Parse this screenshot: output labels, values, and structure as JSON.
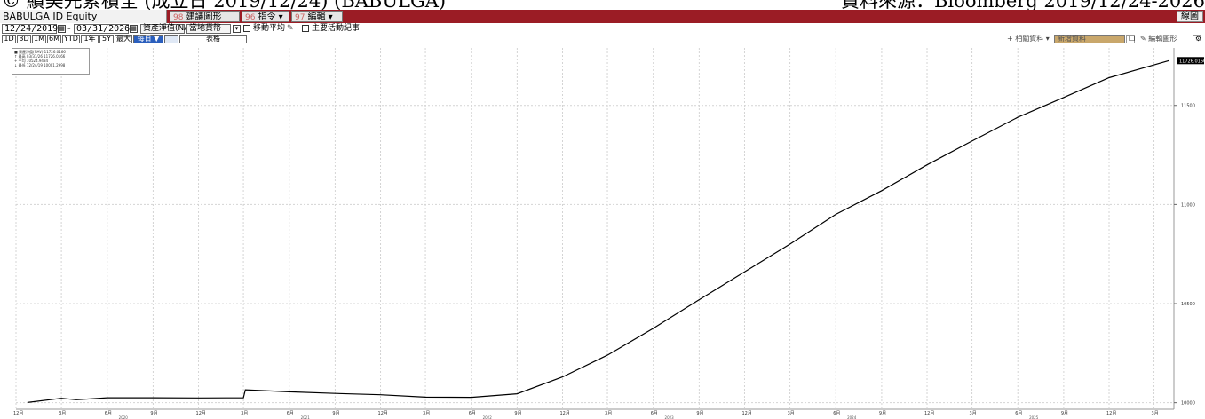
{
  "caption": {
    "left": "© 績美先索積全 (成立日 2019/12/24) (BABULGA)",
    "right": "資料來源：Bloomberg 2019/12/24-2026"
  },
  "titlebar": {
    "ticker": "BABULGA ID Equity",
    "btn_suggest_num": "98",
    "btn_suggest": "建議圖形",
    "btn_command_num": "96",
    "btn_command": "指令",
    "btn_edit_num": "97",
    "btn_edit": "編輯",
    "right_btn": "線圖"
  },
  "daterow": {
    "start_date": "12/24/2019",
    "end_date": "03/31/2026",
    "series_select": "資產淨值(NAV",
    "currency_select": "當地貨幣",
    "moving_avg_label": "移動平均",
    "events_label": "主要活動紀事"
  },
  "periods": {
    "items": [
      "1D",
      "3D",
      "1M",
      "6M",
      "YTD",
      "1年",
      "5Y",
      "最大",
      "每日 ▼"
    ],
    "table_label": "表格"
  },
  "toolbar_right": {
    "related_label": "相關資料",
    "new_data_label": "新增資料",
    "edit_chart_label": "編輯圖形"
  },
  "legend": {
    "rows": [
      "■ 資產淨值(NAV)  11726.0166",
      "↑ 最高 03/31/26   11726.0166",
      "+ 平均             10524.9434",
      "↓ 最低 12/24/19   10001.2998"
    ]
  },
  "colors": {
    "titlebar": "#9b1c25",
    "active_period": "#2b5fbd",
    "new_data_field": "#c9a76b"
  },
  "chart_data": {
    "type": "line",
    "series": [
      {
        "name": "資產淨值(NAV)",
        "x": [
          "2019-12-24",
          "2020-03-01",
          "2020-03-31",
          "2020-06-01",
          "2020-09-01",
          "2020-12-01",
          "2021-03-01",
          "2021-03-05",
          "2021-06-01",
          "2021-09-01",
          "2021-12-01",
          "2022-03-01",
          "2022-06-01",
          "2022-09-01",
          "2022-12-01",
          "2023-03-01",
          "2023-06-01",
          "2023-09-01",
          "2023-12-01",
          "2024-03-01",
          "2024-06-01",
          "2024-09-01",
          "2024-12-01",
          "2025-03-01",
          "2025-06-01",
          "2025-09-01",
          "2025-12-01",
          "2026-03-31"
        ],
        "values": [
          10001.3,
          10022,
          10015,
          10025,
          10025,
          10024,
          10025,
          10065,
          10055,
          10047,
          10040,
          10028,
          10027,
          10045,
          10130,
          10240,
          10375,
          10520,
          10660,
          10800,
          10950,
          11070,
          11200,
          11320,
          11440,
          11540,
          11640,
          11726.0166
        ]
      }
    ],
    "y_ticks": [
      10000,
      10500,
      11000,
      11500
    ],
    "ylim": [
      9985,
      11790
    ],
    "last_value_label": "11726.0166",
    "x_tick_labels": [
      "12月",
      "3月",
      "6月",
      "9月",
      "12月",
      "3月",
      "6月",
      "9月",
      "12月",
      "3月",
      "6月",
      "9月",
      "12月",
      "3月",
      "6月",
      "9月",
      "12月",
      "3月",
      "6月",
      "9月",
      "12月",
      "3月",
      "6月",
      "9月",
      "12月",
      "3月"
    ],
    "x_tick_dates": [
      "2019-12-01",
      "2020-03-01",
      "2020-06-01",
      "2020-09-01",
      "2020-12-01",
      "2021-03-01",
      "2021-06-01",
      "2021-09-01",
      "2021-12-01",
      "2022-03-01",
      "2022-06-01",
      "2022-09-01",
      "2022-12-01",
      "2023-03-01",
      "2023-06-01",
      "2023-09-01",
      "2023-12-01",
      "2024-03-01",
      "2024-06-01",
      "2024-09-01",
      "2024-12-01",
      "2025-03-01",
      "2025-06-01",
      "2025-09-01",
      "2025-12-01",
      "2026-03-01"
    ],
    "year_labels": [
      "2020",
      "2021",
      "2022",
      "2023",
      "2024",
      "2025",
      "2026"
    ],
    "grid": true
  }
}
